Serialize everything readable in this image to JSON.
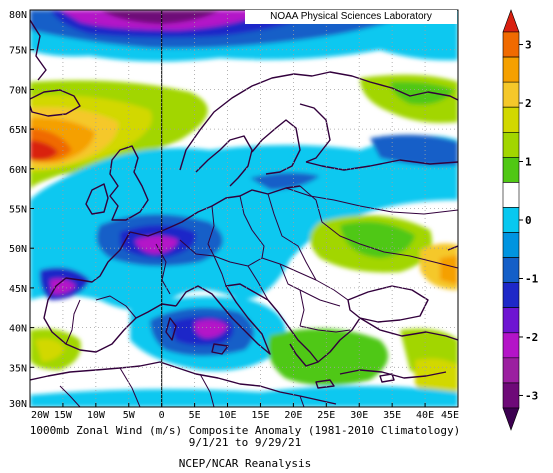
{
  "credit": "NOAA Physical Sciences Laboratory",
  "caption": {
    "line1": "1000mb Zonal Wind (m/s) Composite Anomaly (1981-2010 Climatology)",
    "line2": "9/1/21  to 9/29/21",
    "line3": "NCEP/NCAR Reanalysis"
  },
  "axes": {
    "lon_labels": [
      "20W",
      "15W",
      "10W",
      "5W",
      "0",
      "5E",
      "10E",
      "15E",
      "20E",
      "25E",
      "30E",
      "35E",
      "40E",
      "45E"
    ],
    "lat_labels": [
      "80N",
      "75N",
      "70N",
      "65N",
      "60N",
      "55N",
      "50N",
      "45N",
      "40N",
      "35N",
      "30N"
    ]
  },
  "colorbar": {
    "labels": [
      "3",
      "2",
      "1",
      "0",
      "-1",
      "-2",
      "-3"
    ],
    "colors": [
      "#d92010",
      "#f06a00",
      "#f5a000",
      "#f5c82a",
      "#d2d800",
      "#a2d600",
      "#50c814",
      "#ffffff",
      "#08c8f0",
      "#0094e0",
      "#145fc8",
      "#1e28c8",
      "#6e14d2",
      "#b414c8",
      "#9b1fa0",
      "#6e0a78",
      "#3c0050"
    ]
  },
  "palette": {
    "land": "#32003c",
    "grid": "#a0a0a0",
    "frame": "#000000"
  }
}
